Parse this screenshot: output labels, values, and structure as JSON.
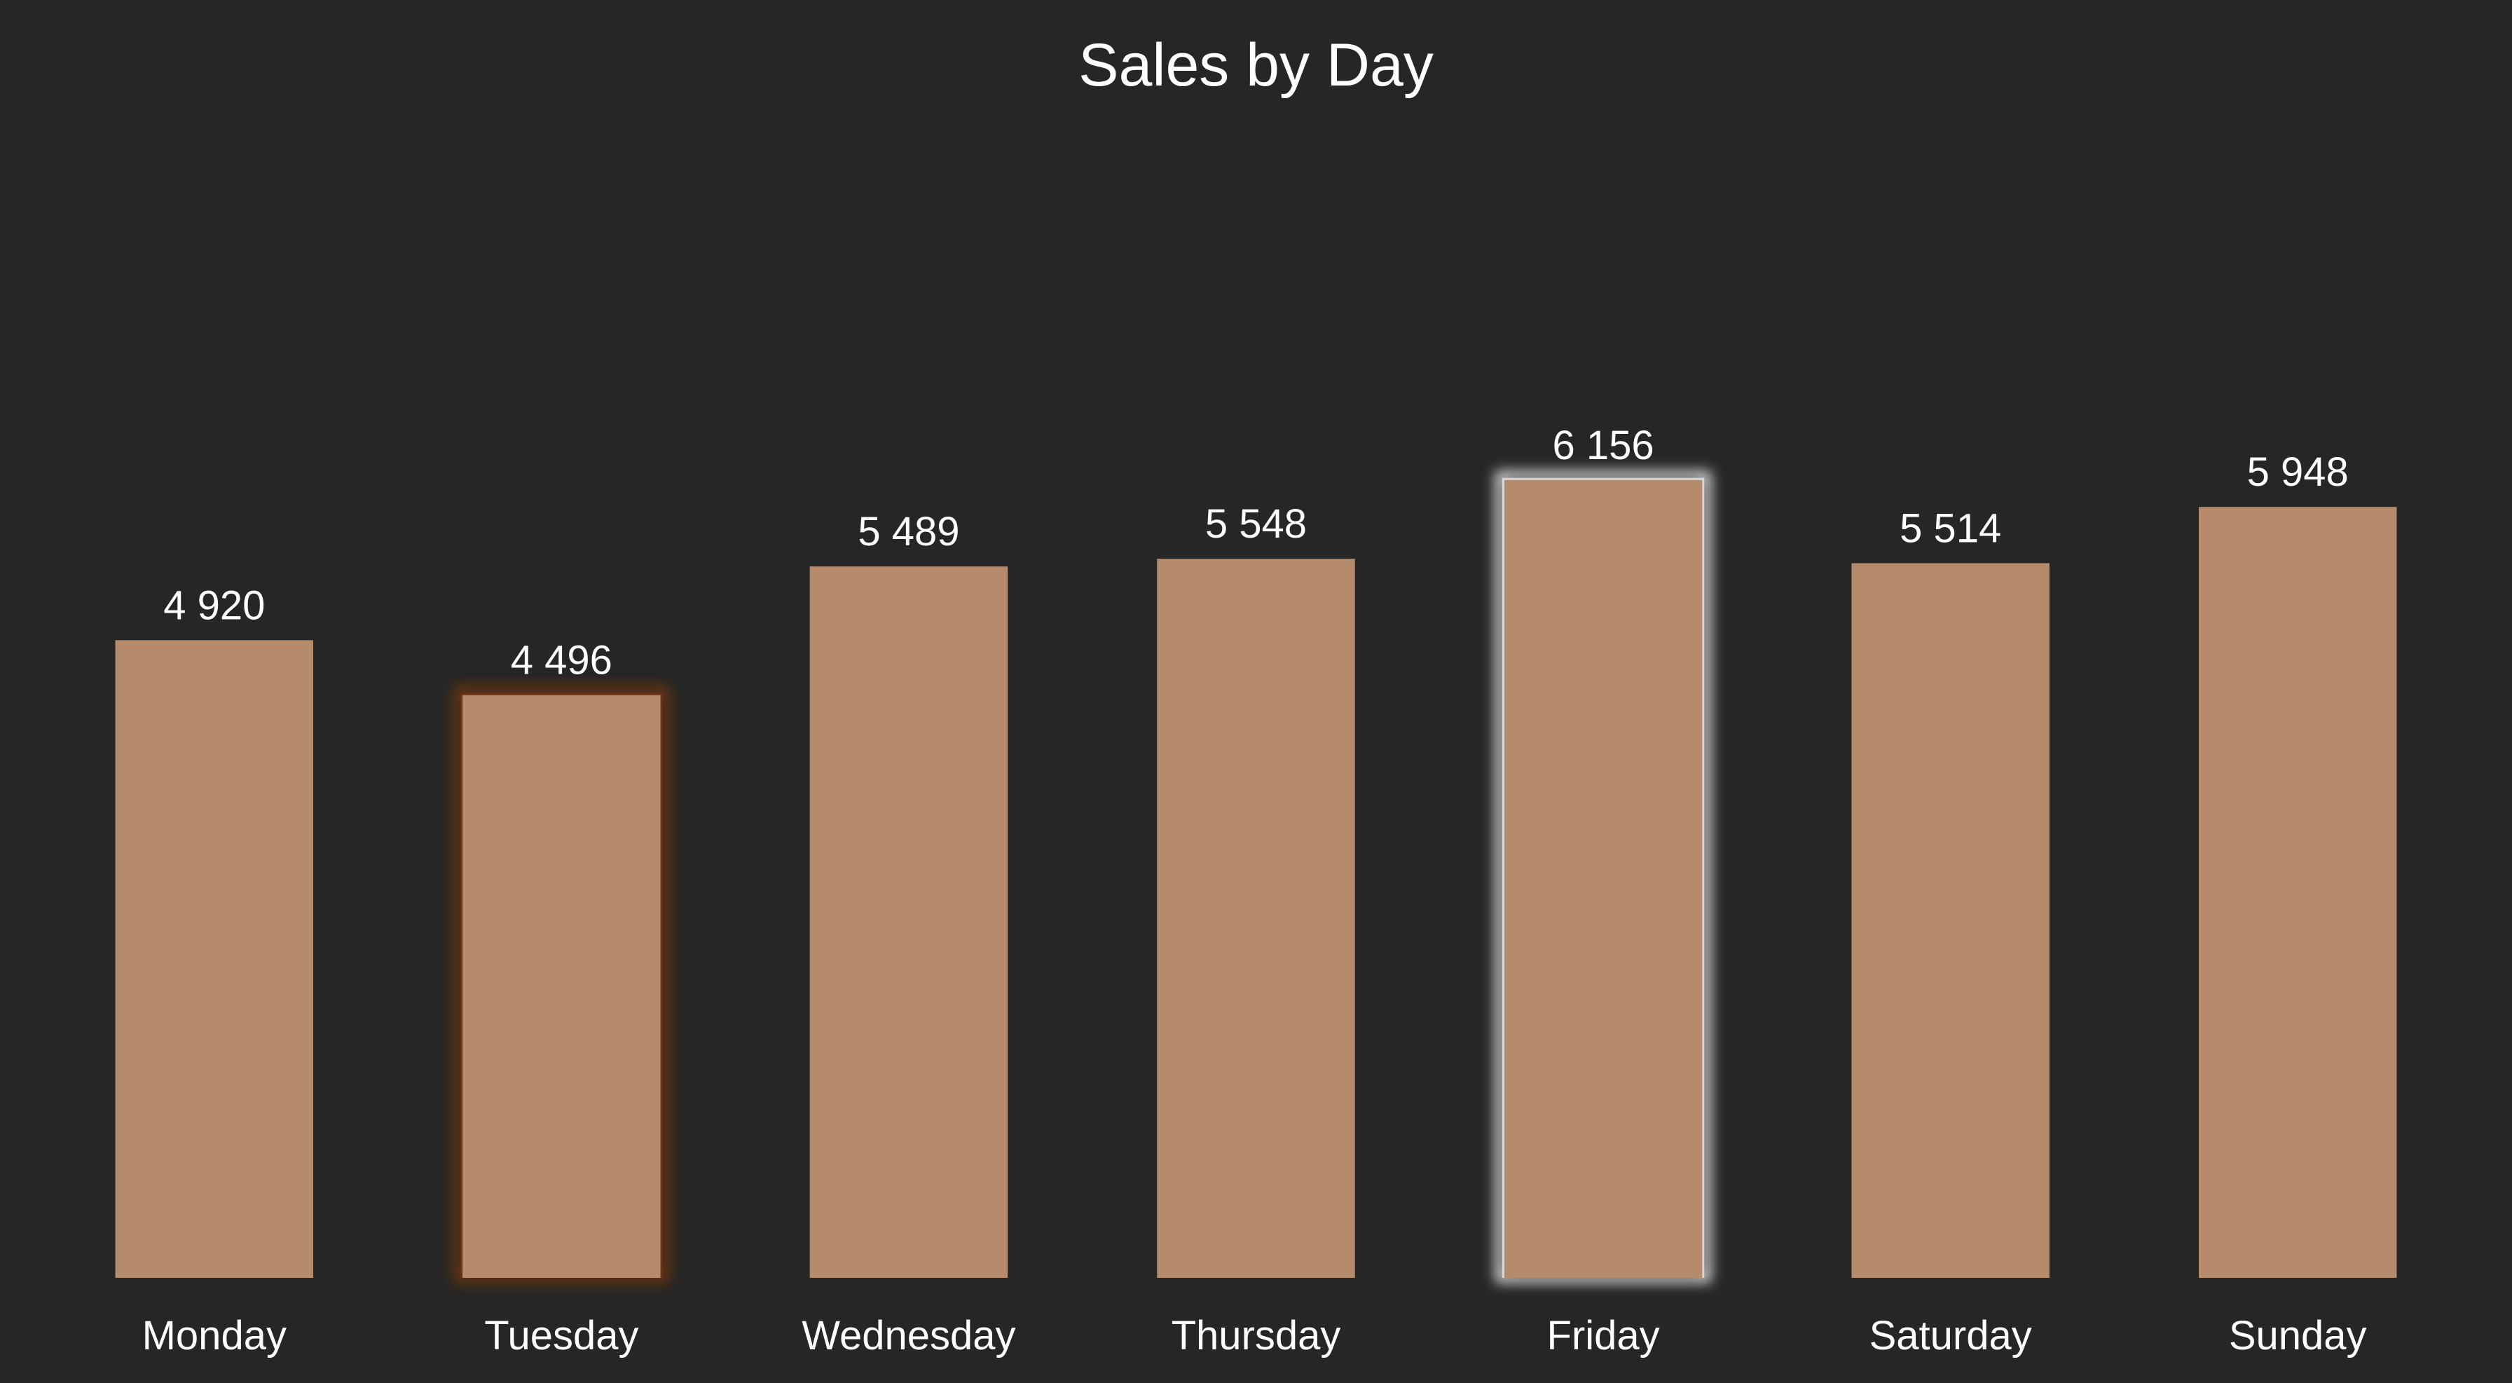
{
  "chart_data": {
    "type": "bar",
    "title": "Sales by Day",
    "xlabel": "",
    "ylabel": "",
    "categories": [
      "Monday",
      "Tuesday",
      "Wednesday",
      "Thursday",
      "Friday",
      "Saturday",
      "Sunday"
    ],
    "values": [
      4920,
      4496,
      5489,
      5548,
      6156,
      5514,
      5948
    ],
    "data_labels": [
      "4 920",
      "4 496",
      "5 489",
      "5 548",
      "6 156",
      "5 514",
      "5 948"
    ],
    "grid": false,
    "legend": "none",
    "highlights": {
      "Tuesday": "lowest",
      "Friday": "highest"
    }
  },
  "colors": {
    "background": "#262626",
    "bar": "#b58b6c",
    "text": "#ffffff",
    "low_highlight": "#6b3411",
    "high_highlight": "#d9d9d9"
  }
}
